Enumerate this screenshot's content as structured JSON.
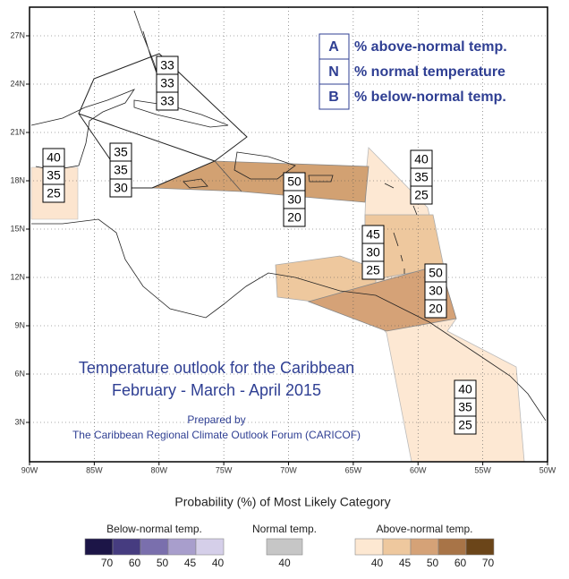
{
  "map": {
    "lat_labels": [
      "27N",
      "24N",
      "21N",
      "18N",
      "15N",
      "12N",
      "9N",
      "6N",
      "3N"
    ],
    "lon_labels": [
      "90W",
      "85W",
      "80W",
      "75W",
      "70W",
      "65W",
      "60W",
      "55W",
      "50W"
    ]
  },
  "key": [
    {
      "letter": "A",
      "text": "% above-normal temp."
    },
    {
      "letter": "N",
      "text": "% normal temperature"
    },
    {
      "letter": "B",
      "text": "% below-normal temp."
    }
  ],
  "title": [
    "Temperature outlook for the Caribbean",
    "February - March - April 2015"
  ],
  "credit": [
    "Prepared by",
    "The Caribbean Regional Climate Outlook Forum (CARICOF)"
  ],
  "regions": [
    {
      "values": [
        33,
        33,
        33
      ]
    },
    {
      "values": [
        40,
        35,
        25
      ]
    },
    {
      "values": [
        35,
        35,
        30
      ]
    },
    {
      "values": [
        50,
        30,
        20
      ]
    },
    {
      "values": [
        40,
        35,
        25
      ]
    },
    {
      "values": [
        45,
        30,
        25
      ]
    },
    {
      "values": [
        50,
        30,
        20
      ]
    },
    {
      "values": [
        40,
        35,
        25
      ]
    }
  ],
  "legend": {
    "title": "Probability (%) of Most Likely Category",
    "scales": [
      {
        "title": "Below-normal temp.",
        "labels": [
          70,
          60,
          50,
          45,
          40
        ],
        "colors": [
          "#1c1547",
          "#463c80",
          "#7a6fad",
          "#a89ecc",
          "#d5cfe9"
        ]
      },
      {
        "title": "Normal temp.",
        "labels": [
          40
        ],
        "colors": [
          "#c6c6c6"
        ]
      },
      {
        "title": "Above-normal temp.",
        "labels": [
          40,
          45,
          50,
          60,
          70
        ],
        "colors": [
          "#fde8d2",
          "#eec89e",
          "#d5a277",
          "#a87447",
          "#6b4519"
        ]
      }
    ]
  }
}
